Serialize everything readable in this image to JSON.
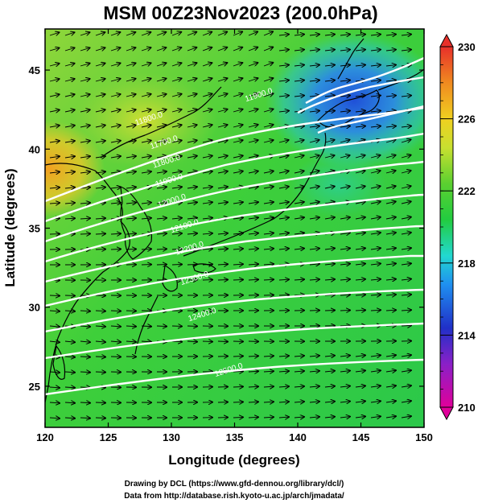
{
  "title": "MSM 00Z23Nov2023 (200.0hPa)",
  "xlabel": "Longitude (degrees)",
  "ylabel": "Latitude  (degrees)",
  "credits": [
    "Drawing by DCL (https://www.gfd-dennou.org/library/dcl/)",
    "Data from http://database.rish.kyoto-u.ac.jp/arch/jmadata/"
  ],
  "map": {
    "lon_range": [
      120,
      150
    ],
    "lat_range": [
      22.4,
      47.6
    ],
    "lon_ticks": [
      "120",
      "125",
      "130",
      "135",
      "140",
      "145",
      "150"
    ],
    "lat_ticks": [
      "25",
      "30",
      "35",
      "40",
      "45"
    ],
    "colorbar": {
      "min": 210,
      "max": 230,
      "unit": "",
      "labels": [
        "230",
        "226",
        "222",
        "218",
        "214",
        "210"
      ],
      "colors": [
        "#e0009a",
        "#3040d0",
        "#1f8ff0",
        "#22d8c8",
        "#22cc40",
        "#5bd030",
        "#c8e030",
        "#f0d020",
        "#f08a20",
        "#e8302a"
      ]
    },
    "contour_labels": [
      {
        "text": "11900.0",
        "lon": 135.9,
        "lat": 43.0
      },
      {
        "text": "11800.0",
        "lon": 127.2,
        "lat": 41.5
      },
      {
        "text": "11700.0",
        "lon": 128.4,
        "lat": 40.0
      },
      {
        "text": "11800.0",
        "lon": 128.6,
        "lat": 38.8
      },
      {
        "text": "11900.0",
        "lon": 128.8,
        "lat": 37.6
      },
      {
        "text": "12000.0",
        "lon": 129.0,
        "lat": 36.3
      },
      {
        "text": "12100.0",
        "lon": 130.0,
        "lat": 34.7
      },
      {
        "text": "12200.0",
        "lon": 130.4,
        "lat": 33.3
      },
      {
        "text": "12300.0",
        "lon": 130.8,
        "lat": 31.4
      },
      {
        "text": "12400.0",
        "lon": 131.4,
        "lat": 29.1
      },
      {
        "text": "12500.0",
        "lon": 133.5,
        "lat": 25.6
      }
    ],
    "wind_direction": "west-to-east",
    "colors": {
      "contour": "#ffffff",
      "coast": "#000000",
      "arrow": "#000000"
    }
  }
}
